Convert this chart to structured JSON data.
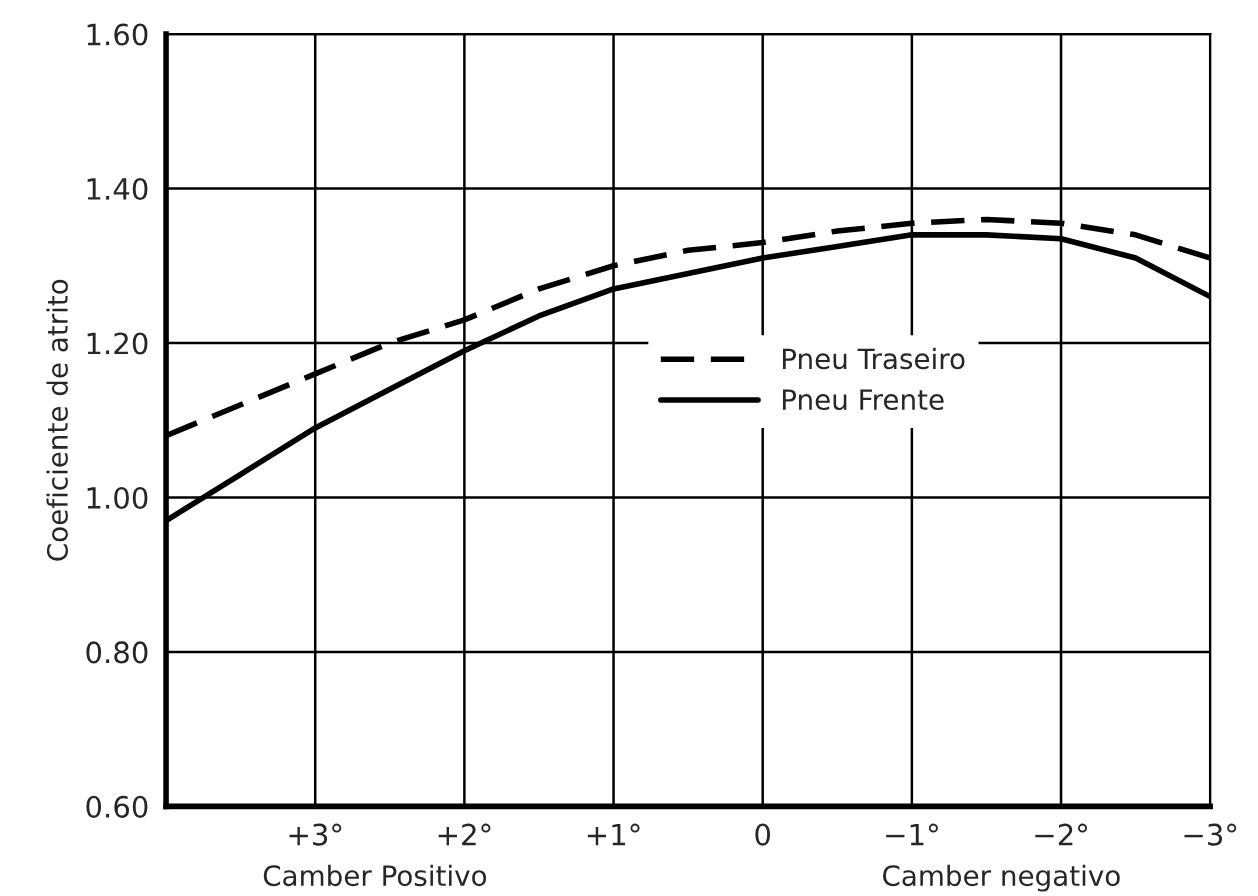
{
  "chart_data": {
    "type": "line",
    "ylabel": "Coeficiente de atrito",
    "annotations": [
      "Camber Positivo",
      "Camber negativo"
    ],
    "x": [
      4,
      3.5,
      3,
      2.5,
      2,
      1.5,
      1,
      0.5,
      0,
      -0.5,
      -1,
      -1.5,
      -2,
      -2.5,
      -3
    ],
    "series": [
      {
        "name": "Pneu Traseiro",
        "color": "#000000",
        "line_style": "dashed",
        "values": [
          1.08,
          1.12,
          1.16,
          1.2,
          1.23,
          1.27,
          1.3,
          1.32,
          1.33,
          1.345,
          1.355,
          1.36,
          1.355,
          1.34,
          1.31
        ]
      },
      {
        "name": "Pneu Frente",
        "color": "#000000",
        "line_style": "solid",
        "values": [
          0.97,
          1.03,
          1.09,
          1.14,
          1.19,
          1.235,
          1.27,
          1.29,
          1.31,
          1.325,
          1.34,
          1.34,
          1.335,
          1.31,
          1.26
        ]
      }
    ],
    "xlim": [
      4,
      -3
    ],
    "xticks": [
      {
        "value": 3,
        "label": "+3°"
      },
      {
        "value": 2,
        "label": "+2°"
      },
      {
        "value": 1,
        "label": "+1°"
      },
      0,
      {
        "value": -1,
        "label": "−1°"
      },
      {
        "value": -2,
        "label": "−2°"
      },
      {
        "value": -3,
        "label": "−3°"
      }
    ],
    "ylim": [
      0.6,
      1.6
    ],
    "yticks": [
      {
        "value": 0.6,
        "label": "0.60"
      },
      {
        "value": 0.8,
        "label": "0.80"
      },
      {
        "value": 1.0,
        "label": "1.00"
      },
      {
        "value": 1.2,
        "label": "1.20"
      },
      {
        "value": 1.4,
        "label": "1.40"
      },
      {
        "value": 1.6,
        "label": "1.60"
      }
    ],
    "grid": true,
    "legend": "center",
    "marker": "none"
  }
}
